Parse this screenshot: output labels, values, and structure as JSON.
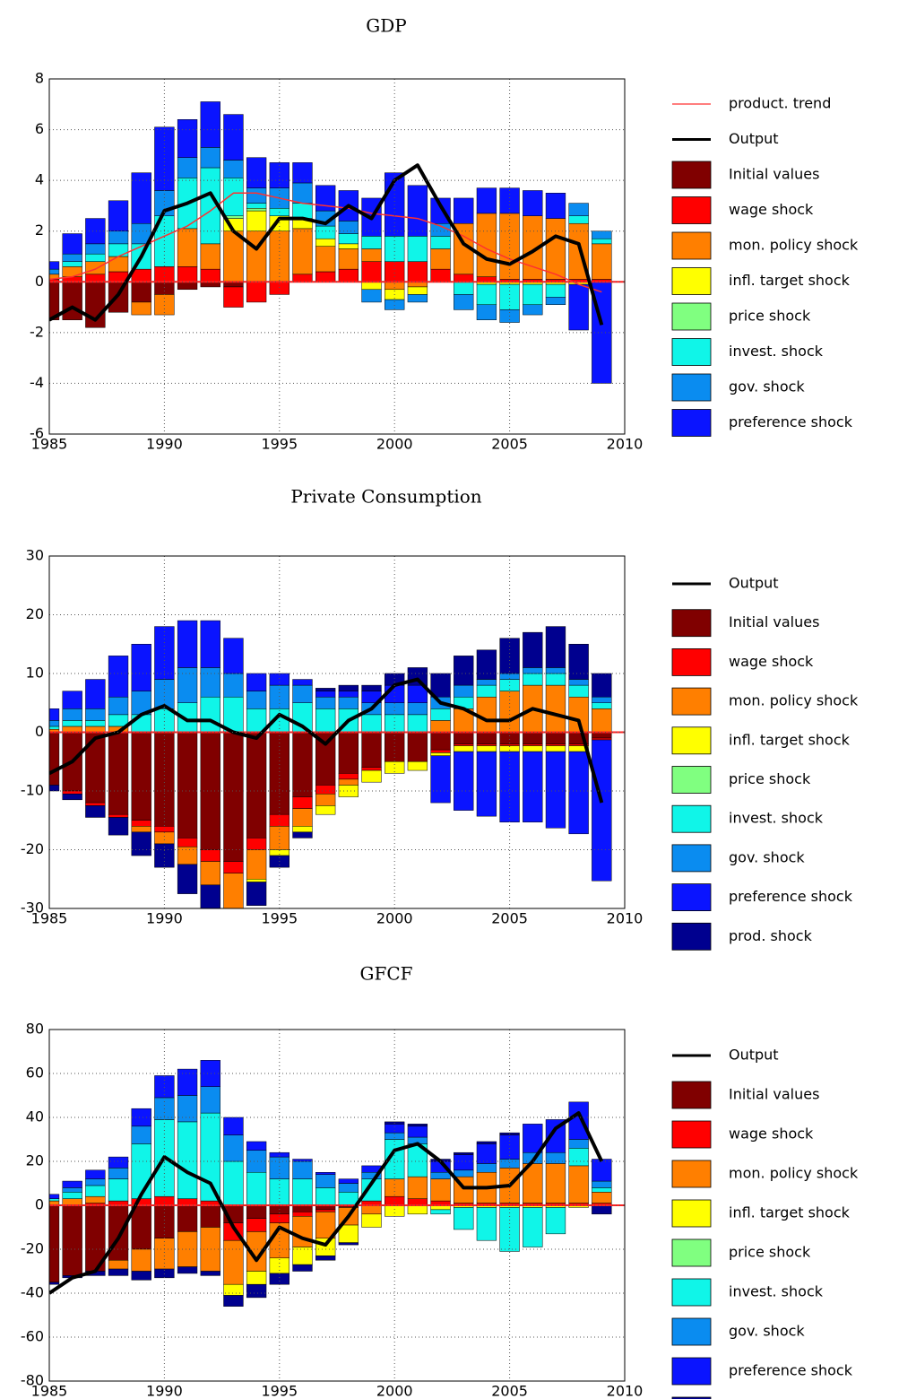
{
  "chart_data": [
    {
      "type": "bar",
      "title": "GDP",
      "x": [
        1985,
        1986,
        1987,
        1988,
        1989,
        1990,
        1991,
        1992,
        1993,
        1994,
        1995,
        1996,
        1997,
        1998,
        1999,
        2000,
        2001,
        2002,
        2003,
        2004,
        2005,
        2006,
        2007,
        2008,
        2009
      ],
      "lines": [
        {
          "name": "product. trend",
          "color": "#ff3030",
          "values": [
            0.1,
            0.2,
            0.5,
            1,
            1.4,
            1.8,
            2.2,
            2.8,
            3.5,
            3.5,
            3.3,
            3.1,
            3,
            2.9,
            2.7,
            2.6,
            2.5,
            2.2,
            1.8,
            1.3,
            0.9,
            0.6,
            0.3,
            -0.1,
            -0.4
          ]
        },
        {
          "name": "Output",
          "color": "#000000",
          "values": [
            -1.5,
            -1,
            -1.5,
            -0.5,
            1,
            2.8,
            3.1,
            3.5,
            2,
            1.3,
            2.5,
            2.5,
            2.3,
            3,
            2.5,
            4,
            4.6,
            3,
            1.5,
            0.9,
            0.7,
            1.2,
            1.8,
            1.5,
            -1.7
          ]
        }
      ],
      "series": [
        {
          "name": "Initial values",
          "color": "#800000",
          "values": [
            -1.5,
            -1.5,
            -1.8,
            -1.2,
            -0.8,
            -0.5,
            -0.3,
            -0.2,
            -0.2,
            0,
            0,
            0,
            0,
            0,
            0,
            0,
            0,
            0,
            0,
            0,
            0,
            0,
            0,
            0,
            0
          ]
        },
        {
          "name": "wage shock",
          "color": "#ff0000",
          "values": [
            0.1,
            0.2,
            0.3,
            0.4,
            0.5,
            0.6,
            0.6,
            0.5,
            -0.8,
            -0.8,
            -0.5,
            0.3,
            0.4,
            0.5,
            0.8,
            0.8,
            0.8,
            0.5,
            0.3,
            0.2,
            0.1,
            0.1,
            0.1,
            0.1,
            0.1
          ]
        },
        {
          "name": "mon. policy shock",
          "color": "#ff7f00",
          "values": [
            0.2,
            0.4,
            0.5,
            0.6,
            -0.5,
            -0.8,
            1.5,
            1,
            2,
            2,
            2,
            1.8,
            1,
            0.8,
            0.5,
            -0.3,
            -0.2,
            0.8,
            2,
            2.5,
            2.6,
            2.5,
            2.4,
            2.2,
            1.4
          ]
        },
        {
          "name": "infl. target shock",
          "color": "#ffff00",
          "values": [
            0,
            0,
            0,
            0,
            0,
            0,
            0,
            0,
            0.5,
            0.8,
            0.6,
            0.4,
            0.3,
            0.2,
            -0.3,
            -0.4,
            -0.3,
            0,
            0,
            -0.1,
            -0.1,
            -0.1,
            -0.1,
            -0.1,
            0
          ]
        },
        {
          "name": "price shock",
          "color": "#80ff80",
          "values": [
            0,
            0,
            0,
            0,
            0,
            0,
            0,
            0,
            0.1,
            0.1,
            0,
            0,
            0,
            0,
            0,
            0,
            0,
            0,
            0,
            0,
            0,
            0,
            0,
            0,
            0
          ]
        },
        {
          "name": "invest. shock",
          "color": "#10f5e8",
          "values": [
            0,
            0.2,
            0.3,
            0.5,
            1,
            2,
            2,
            3,
            1.5,
            0.2,
            0.3,
            0.6,
            0.5,
            0.4,
            0.5,
            1,
            1,
            0.5,
            -0.5,
            -0.8,
            -1,
            -0.8,
            -0.5,
            0.3,
            0.2
          ]
        },
        {
          "name": "gov. shock",
          "color": "#0a8cf0",
          "values": [
            0.2,
            0.3,
            0.4,
            0.5,
            0.8,
            1,
            0.8,
            0.8,
            0.7,
            0.6,
            0.8,
            0.8,
            0.6,
            0.5,
            -0.5,
            -0.4,
            -0.3,
            0.5,
            -0.6,
            -0.6,
            -0.5,
            -0.4,
            -0.3,
            0.5,
            0.3
          ]
        },
        {
          "name": "preference shock",
          "color": "#0a14ff",
          "values": [
            0.3,
            0.8,
            1,
            1.2,
            2,
            2.5,
            1.5,
            1.8,
            1.8,
            1.2,
            1,
            0.8,
            1,
            1.2,
            1.5,
            2.5,
            2,
            1,
            1,
            1,
            1,
            1,
            1,
            -1.8,
            -4
          ]
        }
      ],
      "xlim": [
        1985,
        2010
      ],
      "xticks": [
        1985,
        1990,
        1995,
        2000,
        2005,
        2010
      ],
      "ylim": [
        -6,
        8
      ],
      "yticks": [
        -6,
        -4,
        -2,
        0,
        2,
        4,
        6,
        8
      ],
      "grid": true
    },
    {
      "type": "bar",
      "title": "Private Consumption",
      "x": [
        1985,
        1986,
        1987,
        1988,
        1989,
        1990,
        1991,
        1992,
        1993,
        1994,
        1995,
        1996,
        1997,
        1998,
        1999,
        2000,
        2001,
        2002,
        2003,
        2004,
        2005,
        2006,
        2007,
        2008,
        2009
      ],
      "lines": [
        {
          "name": "Output",
          "color": "#000000",
          "values": [
            -7,
            -5,
            -1,
            0,
            3,
            4.5,
            2,
            2,
            0,
            -1,
            3,
            1,
            -2,
            2,
            4,
            8,
            9,
            5,
            4,
            2,
            2,
            4,
            3,
            2,
            -12
          ]
        }
      ],
      "series": [
        {
          "name": "Initial values",
          "color": "#800000",
          "values": [
            -9,
            -10,
            -12,
            -14,
            -15,
            -16,
            -18,
            -20,
            -22,
            -18,
            -14,
            -11,
            -9,
            -7,
            -6,
            -5,
            -5,
            -3,
            -2,
            -2,
            -2,
            -2,
            -2,
            -2,
            -1
          ]
        },
        {
          "name": "wage shock",
          "color": "#ff0000",
          "values": [
            0,
            -0.5,
            -0.5,
            -0.5,
            -1,
            -1,
            -1.5,
            -2,
            -2,
            -2,
            -2,
            -2,
            -1.5,
            -1,
            -0.5,
            0,
            0,
            -0.5,
            -0.3,
            -0.3,
            -0.3,
            -0.3,
            -0.3,
            -0.3,
            -0.3
          ]
        },
        {
          "name": "mon. policy shock",
          "color": "#ff7f00",
          "values": [
            0.5,
            1,
            1,
            1,
            -1,
            -2,
            -3,
            -4,
            -6,
            -5,
            -4,
            -3,
            -2,
            -1,
            0,
            0,
            0,
            2,
            4,
            6,
            7,
            8,
            8,
            6,
            4
          ]
        },
        {
          "name": "infl. target shock",
          "color": "#ffff00",
          "values": [
            0,
            0,
            0,
            0,
            0,
            0,
            0,
            0,
            0,
            -0.5,
            -1,
            -1,
            -1.5,
            -2,
            -2,
            -2,
            -1.5,
            -0.5,
            -1,
            -1,
            -1,
            -1,
            -1,
            -1,
            0
          ]
        },
        {
          "name": "price shock",
          "color": "#80ff80",
          "values": [
            0,
            0,
            0,
            0,
            0,
            0,
            0,
            0,
            0,
            0,
            0,
            0,
            0,
            0,
            0,
            0,
            0,
            0,
            0,
            0,
            0,
            0,
            0,
            0,
            0
          ]
        },
        {
          "name": "invest. shock",
          "color": "#10f5e8",
          "values": [
            0.5,
            1,
            1,
            2,
            3,
            4,
            5,
            6,
            6,
            4,
            4,
            5,
            4,
            4,
            3,
            3,
            3,
            2,
            2,
            2,
            2,
            2,
            2,
            2,
            1
          ]
        },
        {
          "name": "gov. shock",
          "color": "#0a8cf0",
          "values": [
            1,
            2,
            2,
            3,
            4,
            5,
            6,
            5,
            4,
            3,
            4,
            3,
            2,
            2,
            2,
            2,
            2,
            2,
            2,
            1,
            1,
            1,
            1,
            1,
            1
          ]
        },
        {
          "name": "preference shock",
          "color": "#0a14ff",
          "values": [
            2,
            3,
            5,
            7,
            8,
            9,
            8,
            8,
            6,
            3,
            2,
            1,
            1,
            1,
            2,
            3,
            3,
            -8,
            -10,
            -11,
            -12,
            -12,
            -13,
            -14,
            -24
          ]
        },
        {
          "name": "prod. shock",
          "color": "#00008f",
          "values": [
            -1,
            -1,
            -2,
            -3,
            -4,
            -4,
            -5,
            -6,
            -5,
            -4,
            -2,
            -1,
            0.5,
            1,
            1,
            2,
            3,
            4,
            5,
            5,
            6,
            6,
            7,
            6,
            4
          ]
        }
      ],
      "xlim": [
        1985,
        2010
      ],
      "xticks": [
        1985,
        1990,
        1995,
        2000,
        2005,
        2010
      ],
      "ylim": [
        -30,
        30
      ],
      "yticks": [
        -30,
        -20,
        -10,
        0,
        10,
        20,
        30
      ],
      "grid": true
    },
    {
      "type": "bar",
      "title": "GFCF",
      "x": [
        1985,
        1986,
        1987,
        1988,
        1989,
        1990,
        1991,
        1992,
        1993,
        1994,
        1995,
        1996,
        1997,
        1998,
        1999,
        2000,
        2001,
        2002,
        2003,
        2004,
        2005,
        2006,
        2007,
        2008,
        2009
      ],
      "lines": [
        {
          "name": "Output",
          "color": "#000000",
          "values": [
            -40,
            -33,
            -30,
            -15,
            5,
            22,
            15,
            10,
            -10,
            -25,
            -10,
            -15,
            -18,
            -5,
            10,
            25,
            28,
            20,
            8,
            8,
            9,
            20,
            35,
            42,
            20
          ]
        }
      ],
      "series": [
        {
          "name": "Initial values",
          "color": "#800000",
          "values": [
            -35,
            -32,
            -30,
            -25,
            -20,
            -15,
            -12,
            -10,
            -8,
            -6,
            -4,
            -3,
            -2,
            -1,
            0,
            0,
            0,
            0,
            0,
            0,
            0,
            0,
            0,
            0,
            0
          ]
        },
        {
          "name": "wage shock",
          "color": "#ff0000",
          "values": [
            0,
            0,
            1,
            2,
            3,
            4,
            3,
            2,
            -8,
            -6,
            -4,
            -2,
            -1,
            0,
            2,
            4,
            3,
            2,
            1,
            1,
            1,
            1,
            1,
            1,
            1
          ]
        },
        {
          "name": "mon. policy shock",
          "color": "#ff7f00",
          "values": [
            2,
            3,
            3,
            -4,
            -10,
            -14,
            -16,
            -20,
            -20,
            -18,
            -16,
            -14,
            -12,
            -8,
            -4,
            8,
            10,
            10,
            12,
            14,
            16,
            18,
            18,
            17,
            5
          ]
        },
        {
          "name": "infl. target shock",
          "color": "#ffff00",
          "values": [
            0,
            0,
            0,
            0,
            0,
            0,
            0,
            0,
            -5,
            -6,
            -7,
            -8,
            -8,
            -8,
            -6,
            -5,
            -4,
            -2,
            -1,
            -1,
            -1,
            -1,
            -1,
            -1,
            0
          ]
        },
        {
          "name": "price shock",
          "color": "#80ff80",
          "values": [
            0,
            0,
            0,
            0,
            0,
            0,
            0,
            0,
            0,
            0,
            0,
            0,
            0,
            0,
            0,
            0,
            0,
            0,
            0,
            0,
            0,
            0,
            0,
            0,
            0
          ]
        },
        {
          "name": "invest. shock",
          "color": "#10f5e8",
          "values": [
            1,
            3,
            5,
            10,
            25,
            35,
            35,
            40,
            20,
            15,
            12,
            12,
            8,
            6,
            10,
            18,
            15,
            -2,
            -10,
            -15,
            -20,
            -18,
            -12,
            8,
            2
          ]
        },
        {
          "name": "gov. shock",
          "color": "#0a8cf0",
          "values": [
            0,
            2,
            3,
            5,
            8,
            10,
            12,
            12,
            12,
            10,
            10,
            8,
            6,
            4,
            3,
            3,
            3,
            3,
            3,
            4,
            4,
            5,
            5,
            4,
            3
          ]
        },
        {
          "name": "preference shock",
          "color": "#0a14ff",
          "values": [
            2,
            3,
            4,
            5,
            8,
            10,
            12,
            12,
            8,
            4,
            2,
            1,
            1,
            2,
            3,
            4,
            5,
            5,
            7,
            9,
            11,
            13,
            15,
            17,
            10
          ]
        },
        {
          "name": "prod. shock",
          "color": "#00008f",
          "values": [
            -1,
            -1,
            -2,
            -3,
            -4,
            -4,
            -3,
            -2,
            -5,
            -6,
            -5,
            -3,
            -2,
            -1,
            0,
            1,
            1,
            1,
            1,
            1,
            1,
            0,
            0,
            0,
            -4
          ]
        }
      ],
      "xlim": [
        1985,
        2010
      ],
      "xticks": [
        1985,
        1990,
        1995,
        2000,
        2005,
        2010
      ],
      "ylim": [
        -80,
        80
      ],
      "yticks": [
        -80,
        -60,
        -40,
        -20,
        0,
        20,
        40,
        60,
        80
      ],
      "grid": true
    }
  ]
}
